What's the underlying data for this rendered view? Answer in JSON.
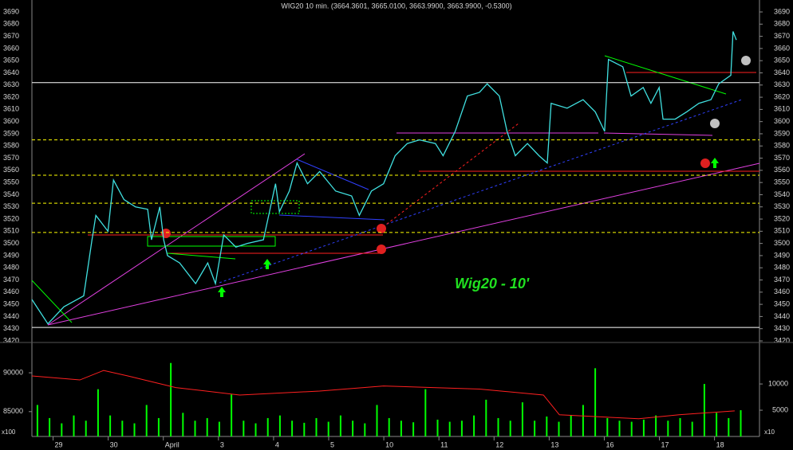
{
  "chart_data": [
    {
      "type": "line",
      "title": "WIG20 10 min. (3664.3601, 3665.0100, 3663.9900, 3663.9900, -0.5300)",
      "annotation": "Wig20 - 10'",
      "xlim": [
        0,
        13.2
      ],
      "ylim": [
        3420,
        3690
      ],
      "yticks": [
        3420,
        3430,
        3440,
        3450,
        3460,
        3470,
        3480,
        3490,
        3500,
        3510,
        3520,
        3530,
        3540,
        3550,
        3560,
        3570,
        3580,
        3590,
        3600,
        3610,
        3620,
        3630,
        3640,
        3650,
        3660,
        3670,
        3680,
        3690
      ],
      "levels": [
        {
          "value": 3632,
          "color": "#ffffff",
          "style": "solid"
        },
        {
          "value": 3585,
          "color": "#ffff00",
          "style": "dashed"
        },
        {
          "value": 3556,
          "color": "#ffff00",
          "style": "dashed"
        },
        {
          "value": 3533,
          "color": "#ffff00",
          "style": "dashed"
        },
        {
          "value": 3509,
          "color": "#ffff00",
          "style": "dashed"
        },
        {
          "value": 3431,
          "color": "#ffffff",
          "style": "solid"
        }
      ],
      "series": [
        {
          "color": "#40e0e0",
          "x": [
            0,
            0.29,
            0.58,
            0.94,
            1.09,
            1.16,
            1.38,
            1.48,
            1.67,
            1.88,
            2.1,
            2.17,
            2.32,
            2.39,
            2.46,
            2.68,
            2.97,
            3.19,
            3.33,
            3.48,
            3.7,
            3.91,
            4.2,
            4.42,
            4.49,
            4.67,
            4.81,
            5.0,
            5.22,
            5.51,
            5.8,
            5.94,
            6.16,
            6.38,
            6.59,
            6.81,
            7.03,
            7.32,
            7.46,
            7.68,
            7.9,
            8.12,
            8.26,
            8.48,
            8.62,
            8.77,
            8.99,
            9.2,
            9.35,
            9.42,
            9.71,
            10.0,
            10.22,
            10.39,
            10.46,
            10.72,
            10.87,
            11.09,
            11.23,
            11.38,
            11.45,
            11.67,
            11.88,
            12.1,
            12.32,
            12.46,
            12.68,
            12.72,
            12.78
          ],
          "values": [
            3454,
            3434,
            3448,
            3457,
            3503,
            3523,
            3510,
            3552,
            3536,
            3530,
            3528,
            3503,
            3530,
            3503,
            3490,
            3484,
            3467,
            3484,
            3467,
            3507,
            3497,
            3500,
            3503,
            3549,
            3526,
            3543,
            3566,
            3549,
            3559,
            3543,
            3539,
            3523,
            3543,
            3549,
            3572,
            3582,
            3585,
            3582,
            3572,
            3592,
            3621,
            3624,
            3631,
            3621,
            3592,
            3572,
            3582,
            3572,
            3566,
            3615,
            3611,
            3618,
            3608,
            3592,
            3651,
            3645,
            3621,
            3628,
            3615,
            3628,
            3602,
            3602,
            3608,
            3615,
            3618,
            3631,
            3638,
            3674,
            3667
          ]
        }
      ]
    },
    {
      "type": "bar",
      "xlim": [
        0,
        13.2
      ],
      "xticks": [
        {
          "value": 0.5,
          "label": "29"
        },
        {
          "value": 1.5,
          "label": "30"
        },
        {
          "value": 2.5,
          "label": "April"
        },
        {
          "value": 3.5,
          "label": "3"
        },
        {
          "value": 4.5,
          "label": "4"
        },
        {
          "value": 5.5,
          "label": "5"
        },
        {
          "value": 6.5,
          "label": "10"
        },
        {
          "value": 7.5,
          "label": "11"
        },
        {
          "value": 8.5,
          "label": "12"
        },
        {
          "value": 9.5,
          "label": "13"
        },
        {
          "value": 10.5,
          "label": "16"
        },
        {
          "value": 11.5,
          "label": "17"
        },
        {
          "value": 12.5,
          "label": "18"
        }
      ],
      "ylim": [
        81800,
        93700
      ],
      "yticks": [
        85000,
        90000
      ],
      "ylabel": "x100",
      "y2lim": [
        0,
        17600
      ],
      "y2ticks": [
        5000,
        10000
      ],
      "y2label": "x10",
      "series": [
        {
          "color": "#00ff00",
          "axis": "y2",
          "x": [
            0.1,
            0.32,
            0.54,
            0.76,
            0.98,
            1.2,
            1.42,
            1.64,
            1.86,
            2.08,
            2.3,
            2.52,
            2.74,
            2.96,
            3.18,
            3.4,
            3.62,
            3.84,
            4.06,
            4.28,
            4.5,
            4.72,
            4.94,
            5.16,
            5.38,
            5.6,
            5.82,
            6.04,
            6.26,
            6.48,
            6.7,
            6.92,
            7.14,
            7.36,
            7.58,
            7.8,
            8.02,
            8.24,
            8.46,
            8.68,
            8.9,
            9.12,
            9.34,
            9.56,
            9.78,
            10.0,
            10.22,
            10.44,
            10.66,
            10.88,
            11.1,
            11.32,
            11.54,
            11.76,
            11.98,
            12.2,
            12.42,
            12.64,
            12.86
          ],
          "values": [
            6000,
            3500,
            2500,
            4000,
            3000,
            9000,
            4000,
            3000,
            2500,
            6000,
            3500,
            14000,
            4500,
            3000,
            3500,
            2800,
            8000,
            3000,
            2500,
            3500,
            4000,
            3000,
            2600,
            3500,
            2800,
            4000,
            3000,
            2500,
            6000,
            3500,
            3000,
            2700,
            9000,
            3200,
            2800,
            3000,
            4000,
            7000,
            3500,
            3000,
            6500,
            3000,
            3800,
            2800,
            4000,
            6000,
            13000,
            3500,
            3000,
            2800,
            3200,
            4000,
            3000,
            3500,
            2800,
            10000,
            4500,
            3500,
            5000
          ]
        },
        {
          "type": "line",
          "color": "#ff2020",
          "x": [
            0,
            0.87,
            1.3,
            1.74,
            2.61,
            3.77,
            5.22,
            6.38,
            8.12,
            9.28,
            9.57,
            11.01,
            11.74,
            12.75
          ],
          "values": [
            89600,
            89080,
            90300,
            89600,
            88100,
            87140,
            87650,
            88300,
            87900,
            87140,
            84590,
            84080,
            84590,
            85100
          ]
        }
      ]
    }
  ]
}
